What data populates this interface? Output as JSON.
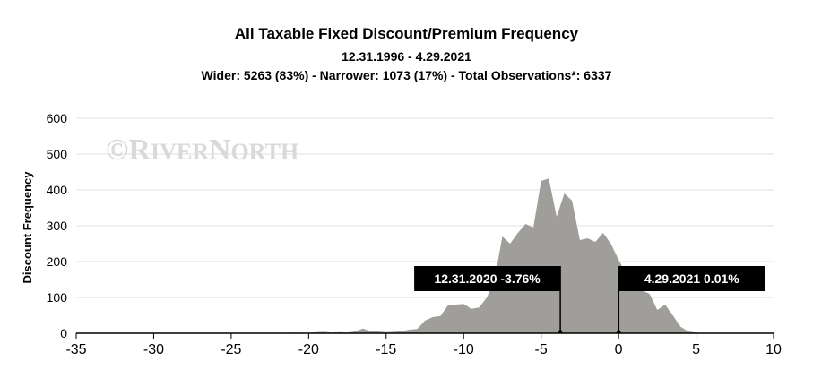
{
  "header": {
    "title": "All Taxable Fixed Discount/Premium Frequency",
    "date_range": "12.31.1996 - 4.29.2021",
    "summary": "Wider: 5263 (83%) - Narrower: 1073 (17%) - Total Observations*: 6337"
  },
  "watermark": {
    "copyright": "©",
    "big1": "R",
    "small1": "IVER",
    "big2": "N",
    "small2": "ORTH"
  },
  "colors": {
    "area": "#a09e9a",
    "grid": "#e0e0e0",
    "callout_bg": "#000000"
  },
  "chart_data": {
    "type": "area",
    "title": "All Taxable Fixed Discount/Premium Frequency",
    "subtitle": "12.31.1996 - 4.29.2021",
    "xlabel": "",
    "ylabel": "Discount Frequency",
    "xlim": [
      -35,
      10
    ],
    "ylim": [
      0,
      600
    ],
    "x_ticks": [
      -35,
      -30,
      -25,
      -20,
      -15,
      -10,
      -5,
      0,
      5,
      10
    ],
    "y_ticks": [
      0,
      100,
      200,
      300,
      400,
      500,
      600
    ],
    "grid": true,
    "series": [
      {
        "x": [
          -35,
          -30,
          -25,
          -22,
          -21,
          -20,
          -19.5,
          -19,
          -18.5,
          -18,
          -17.5,
          -17,
          -16.5,
          -16,
          -15.5,
          -15,
          -14.5,
          -14,
          -13.5,
          -13,
          -12.5,
          -12,
          -11.5,
          -11,
          -10.5,
          -10,
          -9.5,
          -9,
          -8.5,
          -8,
          -7.5,
          -7,
          -6.5,
          -6,
          -5.5,
          -5,
          -4.5,
          -4,
          -3.5,
          -3,
          -2.5,
          -2,
          -1.5,
          -1,
          -0.5,
          0,
          0.5,
          1,
          1.5,
          2,
          2.5,
          3,
          3.5,
          4,
          4.5,
          5,
          5.5,
          6
        ],
        "y": [
          0,
          0,
          0,
          1,
          2,
          1,
          3,
          4,
          2,
          3,
          2,
          5,
          13,
          6,
          5,
          3,
          4,
          6,
          10,
          12,
          35,
          45,
          48,
          78,
          80,
          82,
          68,
          72,
          100,
          150,
          270,
          250,
          280,
          305,
          295,
          425,
          432,
          325,
          390,
          370,
          260,
          265,
          255,
          280,
          250,
          205,
          165,
          150,
          120,
          110,
          65,
          80,
          50,
          18,
          5,
          2,
          1,
          0
        ]
      }
    ],
    "annotations": [
      {
        "x": -3.76,
        "date": "12.31.2020",
        "value": "-3.76%"
      },
      {
        "x": 0.01,
        "date": "4.29.2021",
        "value": "0.01%"
      }
    ]
  }
}
